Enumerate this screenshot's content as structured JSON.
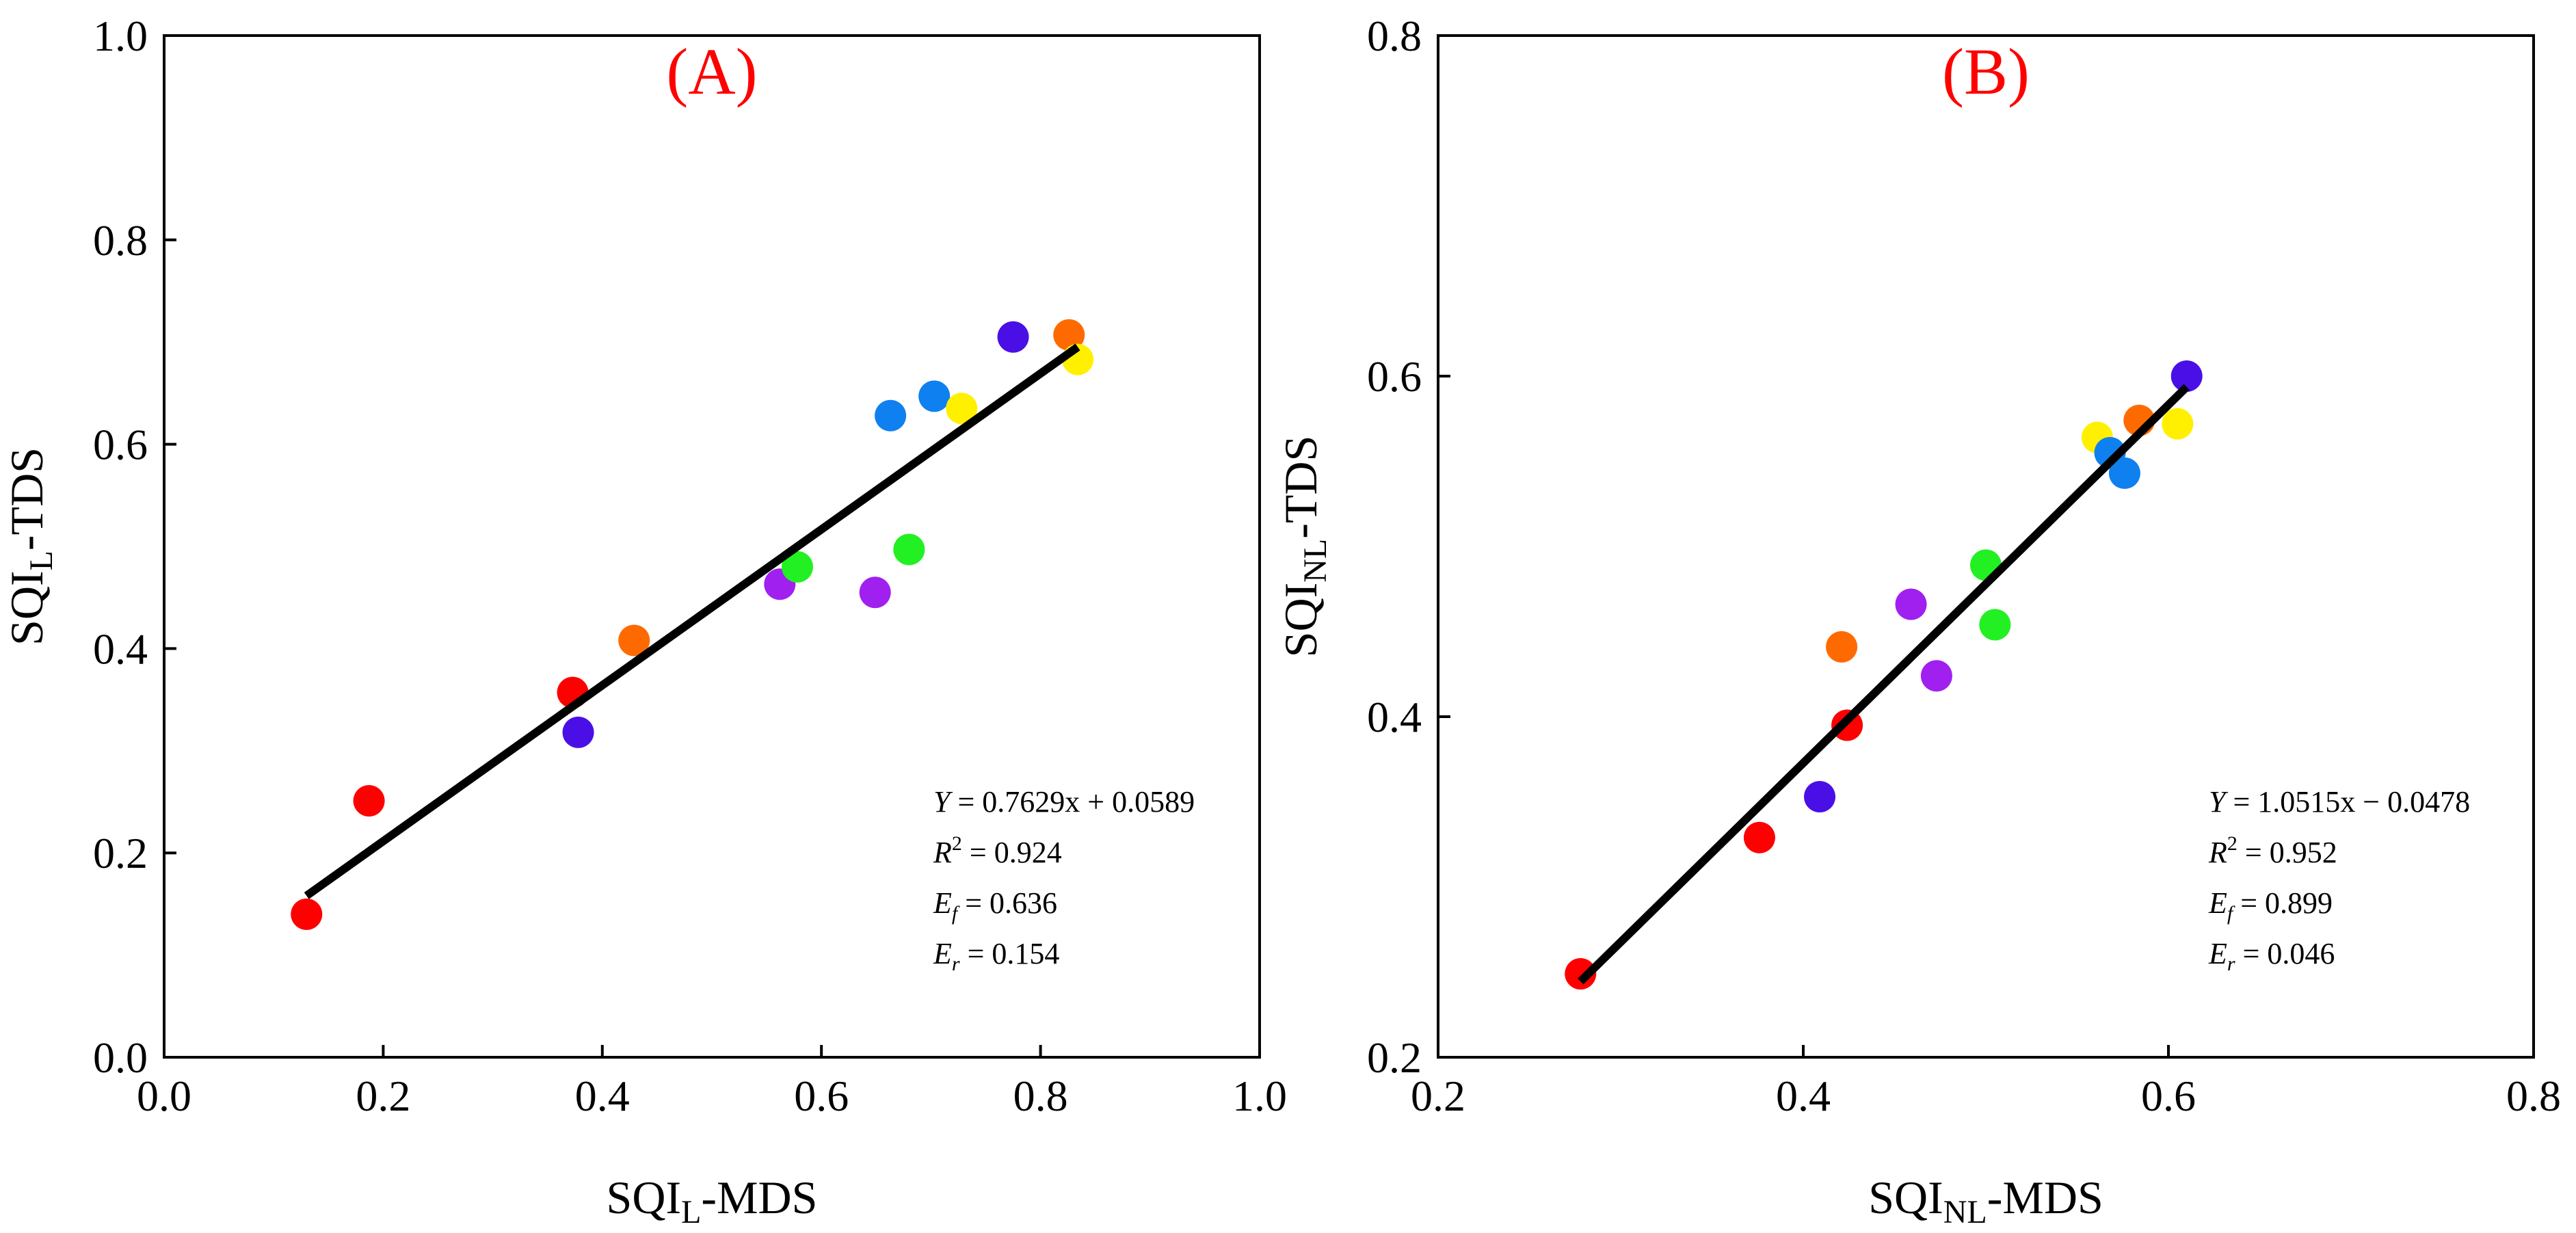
{
  "chart_data": [
    {
      "type": "scatter",
      "panel_label": "(A)",
      "panel_label_color": "#ff0000",
      "xlabel": {
        "main": "SQI",
        "sub": "L",
        "suffix": "-MDS"
      },
      "ylabel": {
        "main": "SQI",
        "sub": "L",
        "suffix": "-TDS"
      },
      "xlim": [
        0.0,
        1.0
      ],
      "ylim": [
        0.0,
        1.0
      ],
      "xticks": [
        "0.0",
        "0.2",
        "0.4",
        "0.6",
        "0.8",
        "1.0"
      ],
      "yticks": [
        "0.0",
        "0.2",
        "0.4",
        "0.6",
        "0.8",
        "1.0"
      ],
      "grid": false,
      "points": [
        {
          "x": 0.13,
          "y": 0.14,
          "color": "#ff0000"
        },
        {
          "x": 0.187,
          "y": 0.251,
          "color": "#ff0000"
        },
        {
          "x": 0.373,
          "y": 0.357,
          "color": "#ff0000"
        },
        {
          "x": 0.378,
          "y": 0.318,
          "color": "#4a0fe6"
        },
        {
          "x": 0.429,
          "y": 0.408,
          "color": "#ff6a00"
        },
        {
          "x": 0.562,
          "y": 0.463,
          "color": "#a020f0"
        },
        {
          "x": 0.578,
          "y": 0.48,
          "color": "#22f022"
        },
        {
          "x": 0.649,
          "y": 0.455,
          "color": "#a020f0"
        },
        {
          "x": 0.68,
          "y": 0.497,
          "color": "#22f022"
        },
        {
          "x": 0.663,
          "y": 0.628,
          "color": "#0f80f0"
        },
        {
          "x": 0.703,
          "y": 0.647,
          "color": "#0f80f0"
        },
        {
          "x": 0.728,
          "y": 0.635,
          "color": "#fff000"
        },
        {
          "x": 0.775,
          "y": 0.705,
          "color": "#4a0fe6"
        },
        {
          "x": 0.826,
          "y": 0.707,
          "color": "#ff6a00"
        },
        {
          "x": 0.834,
          "y": 0.683,
          "color": "#fff000"
        }
      ],
      "fit_line": {
        "slope": 0.7629,
        "intercept": 0.0589,
        "x_range": [
          0.13,
          0.834
        ],
        "color": "#000000"
      },
      "annotations": {
        "equation": {
          "lhs": "Y",
          "rhs": "= 0.7629x + 0.0589"
        },
        "r2": {
          "label": "R",
          "sup": "2",
          "value": "= 0.924"
        },
        "ef": {
          "label": "E",
          "sub": "f",
          "value": "= 0.636"
        },
        "er": {
          "label": "E",
          "sub": "r",
          "value": "= 0.154"
        }
      }
    },
    {
      "type": "scatter",
      "panel_label": "(B)",
      "panel_label_color": "#ff0000",
      "xlabel": {
        "main": "SQI",
        "sub": "NL",
        "suffix": "-MDS"
      },
      "ylabel": {
        "main": "SQI",
        "sub": "NL",
        "suffix": "-TDS"
      },
      "xlim": [
        0.2,
        0.8
      ],
      "ylim": [
        0.2,
        0.8
      ],
      "xticks": [
        "0.2",
        "0.4",
        "0.6",
        "0.8"
      ],
      "yticks": [
        "0.2",
        "0.4",
        "0.6",
        "0.8"
      ],
      "grid": false,
      "points": [
        {
          "x": 0.278,
          "y": 0.249,
          "color": "#ff0000"
        },
        {
          "x": 0.376,
          "y": 0.329,
          "color": "#ff0000"
        },
        {
          "x": 0.424,
          "y": 0.395,
          "color": "#ff0000"
        },
        {
          "x": 0.409,
          "y": 0.353,
          "color": "#4a0fe6"
        },
        {
          "x": 0.421,
          "y": 0.441,
          "color": "#ff6a00"
        },
        {
          "x": 0.459,
          "y": 0.466,
          "color": "#a020f0"
        },
        {
          "x": 0.473,
          "y": 0.424,
          "color": "#a020f0"
        },
        {
          "x": 0.5,
          "y": 0.489,
          "color": "#22f022"
        },
        {
          "x": 0.505,
          "y": 0.454,
          "color": "#22f022"
        },
        {
          "x": 0.561,
          "y": 0.564,
          "color": "#fff000"
        },
        {
          "x": 0.568,
          "y": 0.555,
          "color": "#0f80f0"
        },
        {
          "x": 0.576,
          "y": 0.543,
          "color": "#0f80f0"
        },
        {
          "x": 0.584,
          "y": 0.574,
          "color": "#ff6a00"
        },
        {
          "x": 0.605,
          "y": 0.572,
          "color": "#fff000"
        },
        {
          "x": 0.61,
          "y": 0.6,
          "color": "#4a0fe6"
        }
      ],
      "fit_line": {
        "slope": 1.0515,
        "intercept": -0.0478,
        "x_range": [
          0.278,
          0.61
        ],
        "color": "#000000"
      },
      "annotations": {
        "equation": {
          "lhs": "Y",
          "rhs": "= 1.0515x − 0.0478"
        },
        "r2": {
          "label": "R",
          "sup": "2",
          "value": "= 0.952"
        },
        "ef": {
          "label": "E",
          "sub": "f",
          "value": "= 0.899"
        },
        "er": {
          "label": "E",
          "sub": "r",
          "value": "= 0.046"
        }
      }
    }
  ]
}
